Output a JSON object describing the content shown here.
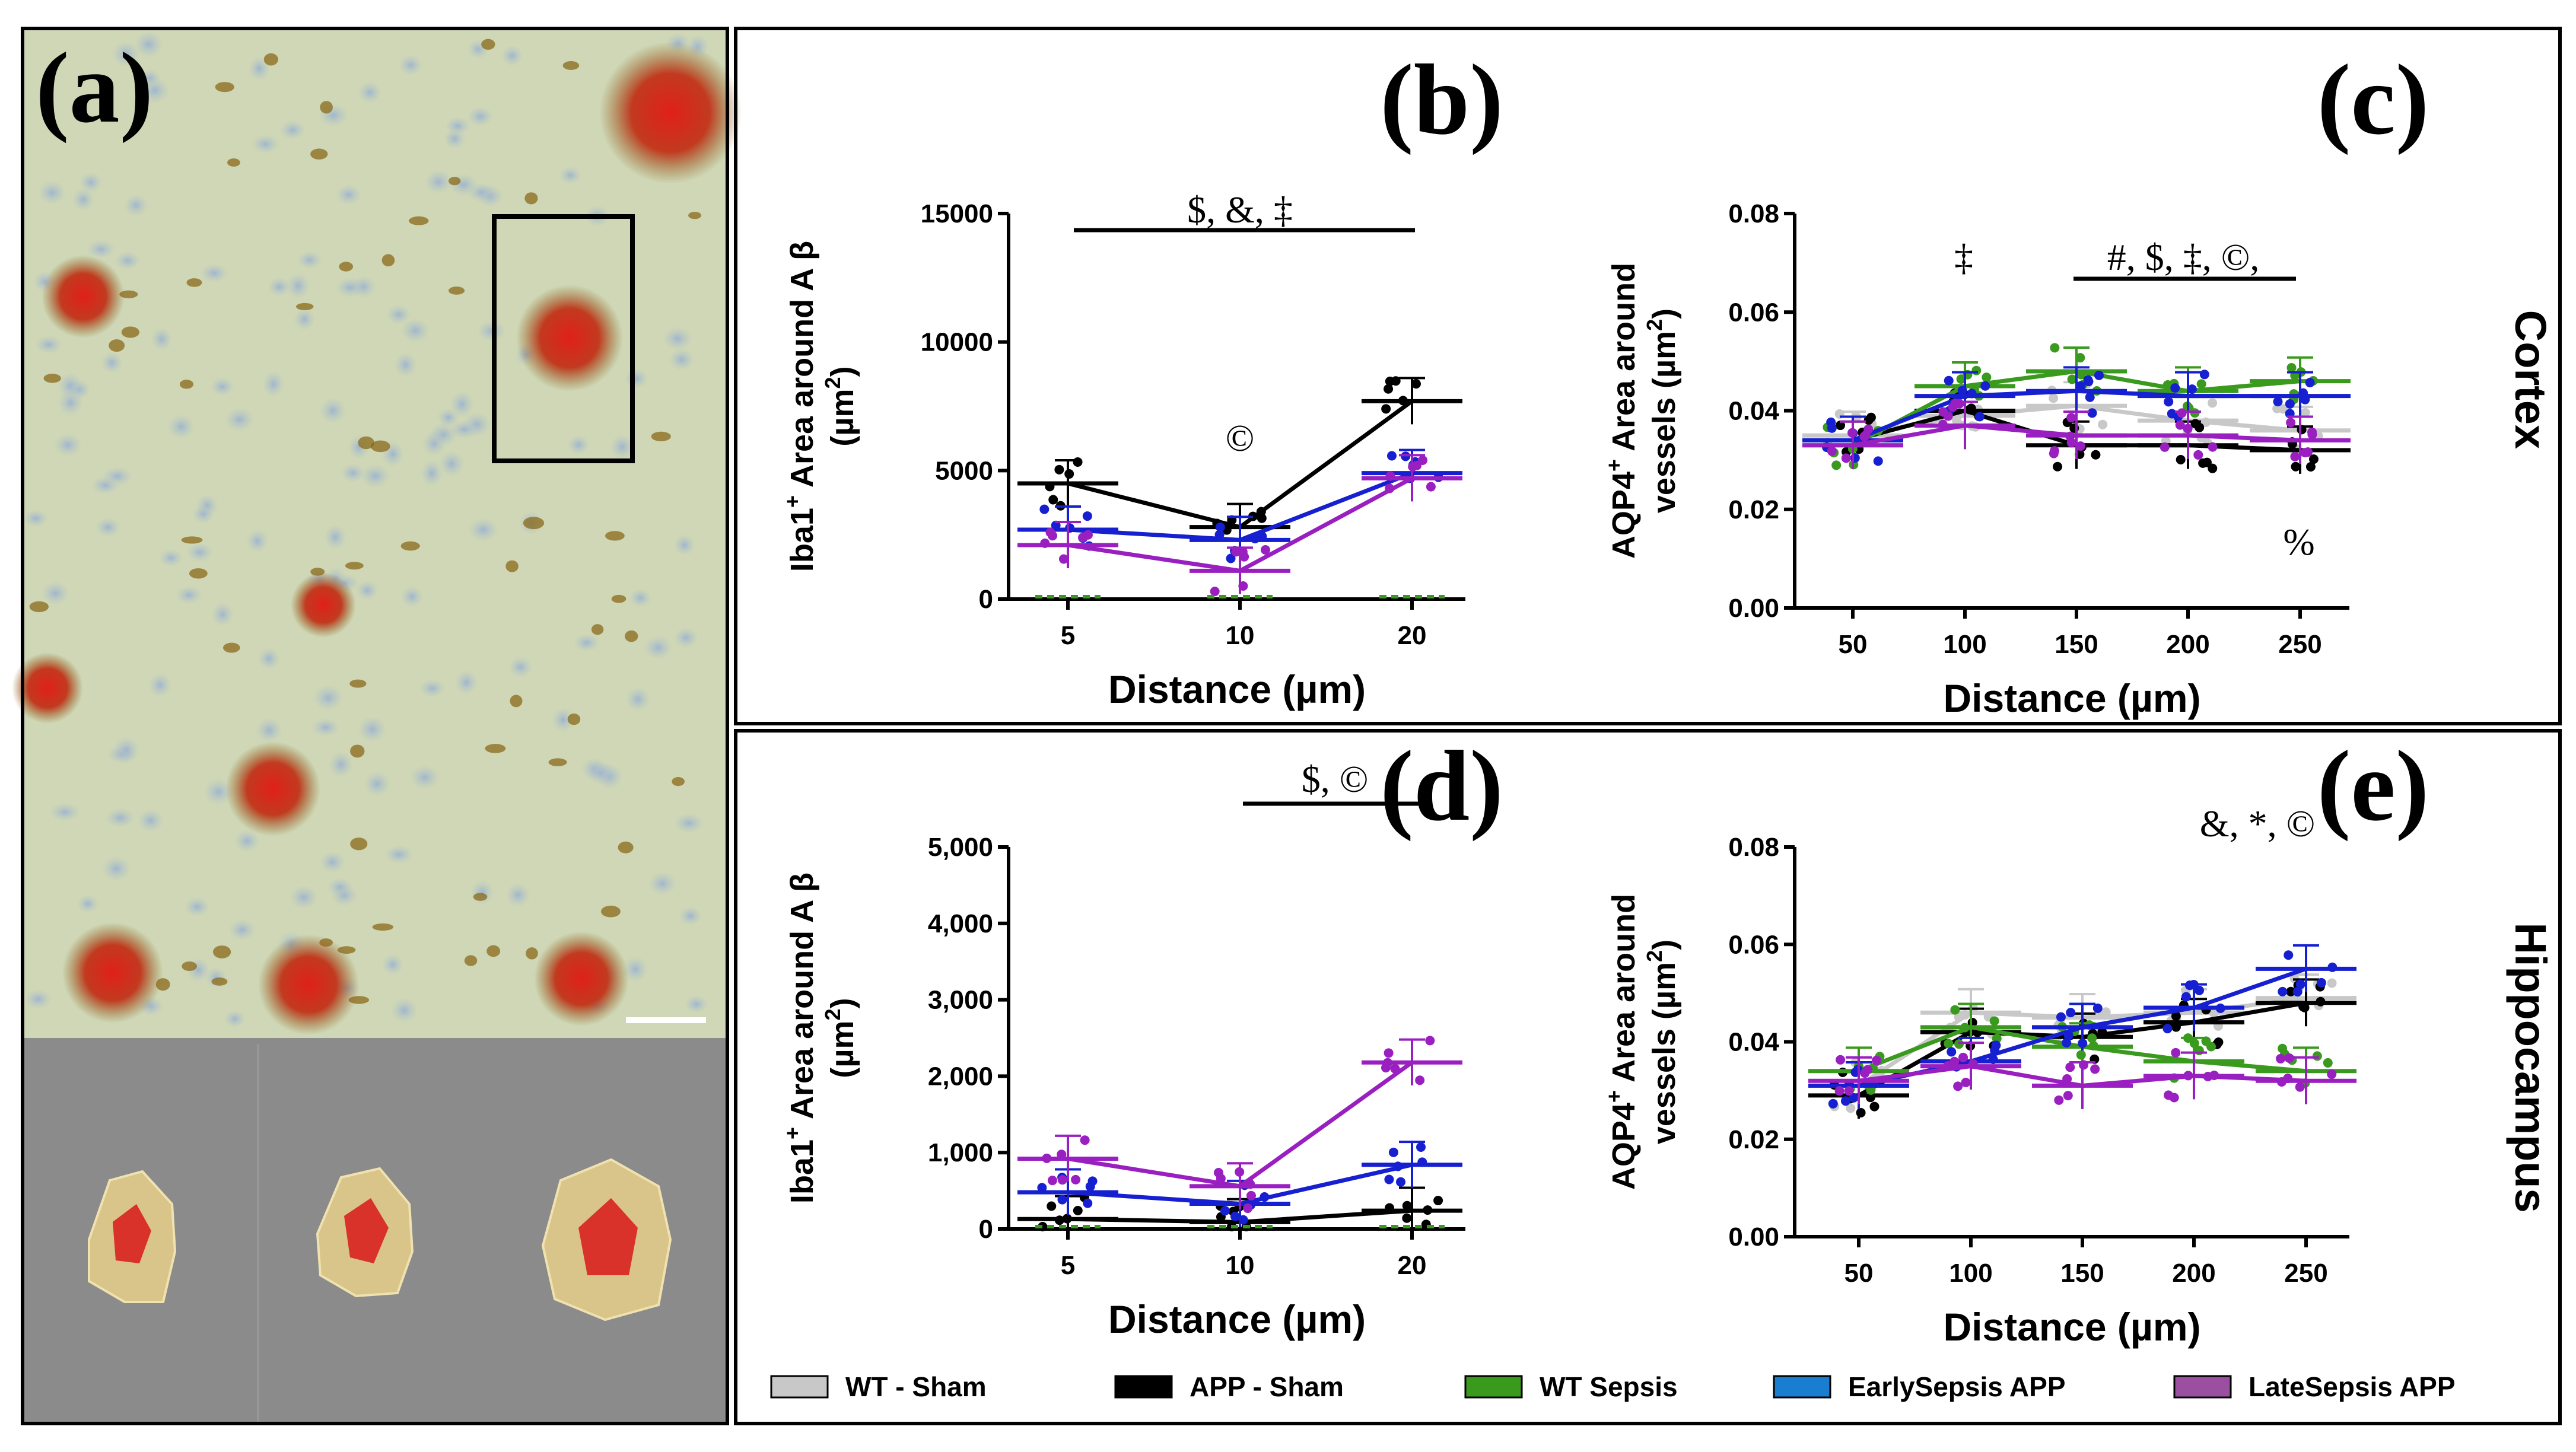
{
  "series_colors": {
    "WT - Sham": "#c8c8c8",
    "APP - Sham": "#000000",
    "WT Sepsis": "#3a9a1e",
    "EarlySepsis APP": "#1620d0",
    "LateSepsis APP": "#9a1fc0"
  },
  "panel_a": {
    "letter": "(a)",
    "description_icons": [
      "microscopy-image",
      "amyloid-plaque-mask"
    ]
  },
  "legend": [
    {
      "label": "WT - Sham",
      "color": "#c8c8c8"
    },
    {
      "label": "APP - Sham",
      "color": "#000000"
    },
    {
      "label": "WT Sepsis",
      "color": "#3a9a1e"
    },
    {
      "label": "EarlySepsis APP",
      "color": "#1a7ed0"
    },
    {
      "label": "LateSepsis APP",
      "color": "#9a4fa0"
    }
  ],
  "regions": {
    "cortex": "Cortex",
    "hippocampus": "Hippocampus"
  },
  "chart_data": [
    {
      "id": "b",
      "letter": "(b)",
      "type": "line",
      "ylabel_main": "Iba1",
      "ylabel_sup": "+",
      "ylabel_rest": " Area around A β",
      "ylabel_unit_a": "(µm",
      "ylabel_unit_sup": "2",
      "ylabel_unit_b": ")",
      "xlabel": "Distance (µm)",
      "categories": [
        "5",
        "10",
        "20"
      ],
      "ylim": [
        0,
        15000
      ],
      "yticks": [
        "0",
        "5000",
        "10000",
        "15000"
      ],
      "annotation": "$, &, ‡",
      "annotation2": "©",
      "series": [
        {
          "name": "APP - Sham",
          "values": [
            4500,
            2800,
            7700
          ]
        },
        {
          "name": "EarlySepsis APP",
          "values": [
            2700,
            2300,
            4900
          ]
        },
        {
          "name": "LateSepsis APP",
          "values": [
            2100,
            1100,
            4700
          ]
        },
        {
          "name": "WT - Sham",
          "values": [
            0,
            0,
            0
          ]
        },
        {
          "name": "WT Sepsis",
          "values": [
            0,
            0,
            0
          ]
        }
      ]
    },
    {
      "id": "c",
      "letter": "(c)",
      "type": "line",
      "ylabel_main": "AQP4",
      "ylabel_sup": "+",
      "ylabel_rest": " Area around",
      "ylabel_unit_a": "vessels (µm",
      "ylabel_unit_sup": "2",
      "ylabel_unit_b": ")",
      "xlabel": "Distance (µm)",
      "categories": [
        "50",
        "100",
        "150",
        "200",
        "250"
      ],
      "ylim": [
        0,
        0.08
      ],
      "yticks": [
        "0.00",
        "0.02",
        "0.04",
        "0.06",
        "0.08"
      ],
      "annotation": "#, $, ‡, ©,",
      "annotation2": "‡",
      "annotation3": "%",
      "series": [
        {
          "name": "WT - Sham",
          "values": [
            0.035,
            0.039,
            0.041,
            0.038,
            0.036
          ]
        },
        {
          "name": "APP - Sham",
          "values": [
            0.034,
            0.04,
            0.033,
            0.033,
            0.032
          ]
        },
        {
          "name": "WT Sepsis",
          "values": [
            0.033,
            0.045,
            0.048,
            0.044,
            0.046
          ]
        },
        {
          "name": "EarlySepsis APP",
          "values": [
            0.034,
            0.043,
            0.044,
            0.043,
            0.043
          ]
        },
        {
          "name": "LateSepsis APP",
          "values": [
            0.033,
            0.037,
            0.035,
            0.035,
            0.034
          ]
        }
      ]
    },
    {
      "id": "d",
      "letter": "(d)",
      "type": "line",
      "ylabel_main": "Iba1",
      "ylabel_sup": "+",
      "ylabel_rest": " Area around A β",
      "ylabel_unit_a": "(µm",
      "ylabel_unit_sup": "2",
      "ylabel_unit_b": ")",
      "xlabel": "Distance (µm)",
      "categories": [
        "5",
        "10",
        "20"
      ],
      "ylim": [
        0,
        5000
      ],
      "yticks": [
        "0",
        "1,000",
        "2,000",
        "3,000",
        "4,000",
        "5,000"
      ],
      "annotation": "$, ©",
      "series": [
        {
          "name": "APP - Sham",
          "values": [
            130,
            90,
            240
          ]
        },
        {
          "name": "EarlySepsis APP",
          "values": [
            480,
            330,
            840
          ]
        },
        {
          "name": "LateSepsis APP",
          "values": [
            920,
            560,
            2180
          ]
        },
        {
          "name": "WT - Sham",
          "values": [
            0,
            0,
            0
          ]
        },
        {
          "name": "WT Sepsis",
          "values": [
            0,
            0,
            0
          ]
        }
      ]
    },
    {
      "id": "e",
      "letter": "(e)",
      "type": "line",
      "ylabel_main": "AQP4",
      "ylabel_sup": "+",
      "ylabel_rest": " Area around",
      "ylabel_unit_a": "vessels (µm",
      "ylabel_unit_sup": "2",
      "ylabel_unit_b": ")",
      "xlabel": "Distance (µm)",
      "categories": [
        "50",
        "100",
        "150",
        "200",
        "250"
      ],
      "ylim": [
        0,
        0.08
      ],
      "yticks": [
        "0.00",
        "0.02",
        "0.04",
        "0.06",
        "0.08"
      ],
      "annotation": "&, *, ©",
      "series": [
        {
          "name": "WT - Sham",
          "values": [
            0.031,
            0.046,
            0.045,
            0.046,
            0.049
          ]
        },
        {
          "name": "APP - Sham",
          "values": [
            0.029,
            0.042,
            0.041,
            0.044,
            0.048
          ]
        },
        {
          "name": "WT Sepsis",
          "values": [
            0.034,
            0.043,
            0.039,
            0.036,
            0.034
          ]
        },
        {
          "name": "EarlySepsis APP",
          "values": [
            0.031,
            0.036,
            0.043,
            0.047,
            0.055
          ]
        },
        {
          "name": "LateSepsis APP",
          "values": [
            0.032,
            0.035,
            0.031,
            0.033,
            0.032
          ]
        }
      ]
    }
  ]
}
